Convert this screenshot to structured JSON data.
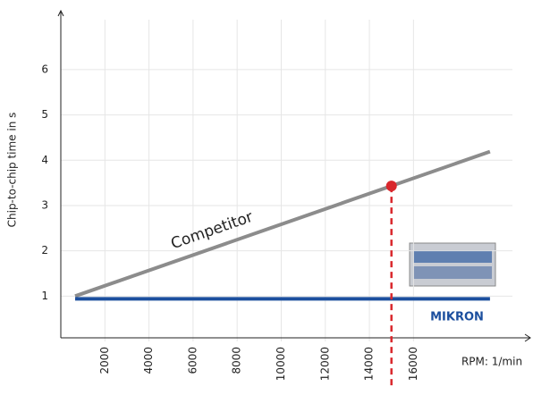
{
  "chart_data": {
    "type": "line",
    "y_label": "Chip-to-chip time in s",
    "x_label": "RPM: 1/min",
    "xlim": [
      0,
      21300
    ],
    "ylim": [
      0,
      7.3
    ],
    "xticks": [
      2000,
      4000,
      6000,
      8000,
      10000,
      12000,
      14000,
      16000
    ],
    "yticks": [
      1,
      2,
      3,
      4,
      5,
      6
    ],
    "grid": true,
    "series": [
      {
        "name": "Competitor",
        "color": "#8c8c8c",
        "x": [
          650,
          19470
        ],
        "values": [
          1,
          4.19
        ]
      },
      {
        "name": "MIKRON",
        "color": "#1c4f9e",
        "x": [
          650,
          19470
        ],
        "values": [
          0.94,
          0.94
        ]
      }
    ],
    "highlight": {
      "x": 15000,
      "y": 3.43,
      "color": "#d9272c"
    }
  }
}
